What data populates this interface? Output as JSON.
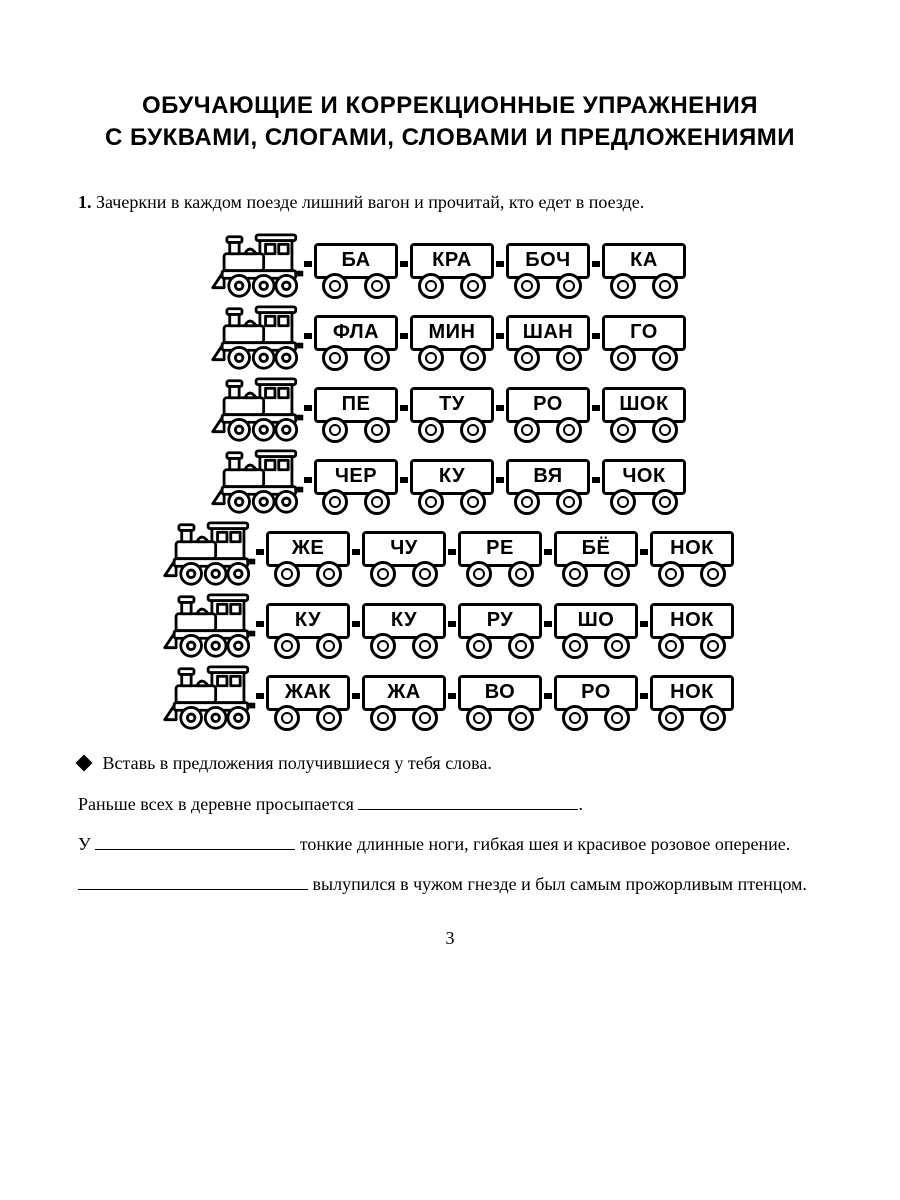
{
  "title_line1": "ОБУЧАЮЩИЕ И КОРРЕКЦИОННЫЕ УПРАЖНЕНИЯ",
  "title_line2": "С БУКВАМИ, СЛОГАМИ, СЛОВАМИ И ПРЕДЛОЖЕНИЯМИ",
  "task1_number": "1.",
  "task1_text": "Зачеркни в каждом поезде лишний вагон и прочитай, кто едет в поезде.",
  "trains": [
    {
      "wagons": [
        "БА",
        "КРА",
        "БОЧ",
        "КА"
      ]
    },
    {
      "wagons": [
        "ФЛА",
        "МИН",
        "ШАН",
        "ГО"
      ]
    },
    {
      "wagons": [
        "ПЕ",
        "ТУ",
        "РО",
        "ШОК"
      ]
    },
    {
      "wagons": [
        "ЧЕР",
        "КУ",
        "ВЯ",
        "ЧОК"
      ]
    },
    {
      "wagons": [
        "ЖЕ",
        "ЧУ",
        "РЕ",
        "БЁ",
        "НОК"
      ]
    },
    {
      "wagons": [
        "КУ",
        "КУ",
        "РУ",
        "ШО",
        "НОК"
      ]
    },
    {
      "wagons": [
        "ЖАК",
        "ЖА",
        "ВО",
        "РО",
        "НОК"
      ]
    }
  ],
  "subtask_text": "Вставь в предложения получившиеся у тебя слова.",
  "sentence1_a": "Раньше всех в деревне просыпается ",
  "sentence1_b": ".",
  "sentence2_a": "У ",
  "sentence2_b": " тонкие длинные ноги, гибкая шея и красивое розовое оперение.",
  "sentence3_a": "",
  "sentence3_b": " вылупился в чужом гнезде и был самым прожорливым птенцом.",
  "page_number": "3",
  "style": {
    "background": "#ffffff",
    "text_color": "#000000",
    "border_color": "#000000",
    "title_fontsize": 24,
    "body_fontsize": 18,
    "wagon_fontsize": 20,
    "wagon_font_weight": 700,
    "wagon_width": 92,
    "wagon_height": 64,
    "loco_width": 96,
    "wheel_diameter": 20,
    "border_width": 3
  }
}
